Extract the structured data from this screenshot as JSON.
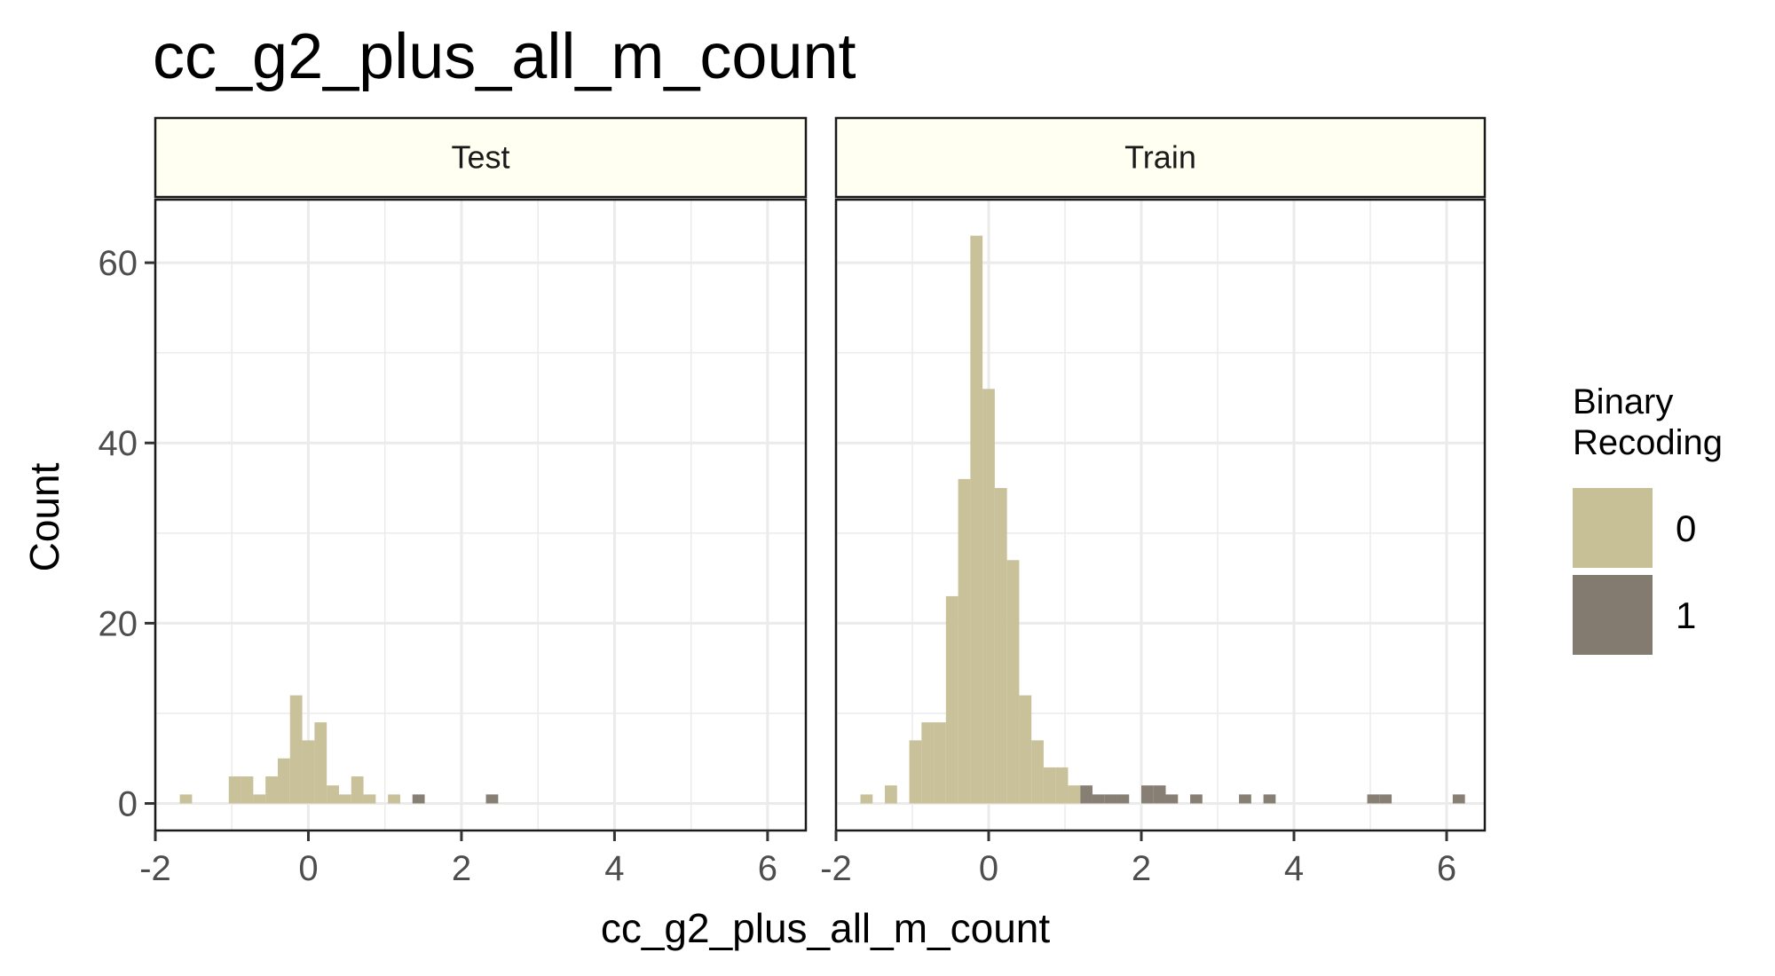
{
  "chart_data": {
    "type": "bar",
    "title": "cc_g2_plus_all_m_count",
    "xlabel": "cc_g2_plus_all_m_count",
    "ylabel": "Count",
    "xlim": [
      -2,
      6.5
    ],
    "ylim": [
      -3,
      67
    ],
    "x_ticks": [
      "-2",
      "0",
      "2",
      "4",
      "6"
    ],
    "y_ticks": [
      "0",
      "20",
      "40",
      "60"
    ],
    "bin_width": 0.16,
    "grid": true,
    "legend": {
      "title_lines": [
        "Binary",
        "Recoding"
      ],
      "placement": "right",
      "entries": [
        {
          "label": "0",
          "color": "#c7bf96"
        },
        {
          "label": "1",
          "color": "#847b70"
        }
      ]
    },
    "colors": {
      "strip_fill": "#fffff2",
      "grid": "#ebebeb",
      "border": "#1a1a1a"
    },
    "panels": [
      {
        "name": "Test",
        "bins": [
          {
            "x0": -1.68,
            "count": 1,
            "group": "0"
          },
          {
            "x0": -1.04,
            "count": 3,
            "group": "0"
          },
          {
            "x0": -0.88,
            "count": 3,
            "group": "0"
          },
          {
            "x0": -0.72,
            "count": 1,
            "group": "0"
          },
          {
            "x0": -0.56,
            "count": 3,
            "group": "0"
          },
          {
            "x0": -0.4,
            "count": 5,
            "group": "0"
          },
          {
            "x0": -0.24,
            "count": 12,
            "group": "0"
          },
          {
            "x0": -0.08,
            "count": 7,
            "group": "0"
          },
          {
            "x0": 0.08,
            "count": 9,
            "group": "0"
          },
          {
            "x0": 0.24,
            "count": 2,
            "group": "0"
          },
          {
            "x0": 0.4,
            "count": 1,
            "group": "0"
          },
          {
            "x0": 0.56,
            "count": 3,
            "group": "0"
          },
          {
            "x0": 0.72,
            "count": 1,
            "group": "0"
          },
          {
            "x0": 1.04,
            "count": 1,
            "group": "0"
          },
          {
            "x0": 1.36,
            "count": 1,
            "group": "1"
          },
          {
            "x0": 2.32,
            "count": 1,
            "group": "1"
          }
        ]
      },
      {
        "name": "Train",
        "bins": [
          {
            "x0": -1.68,
            "count": 1,
            "group": "0"
          },
          {
            "x0": -1.36,
            "count": 2,
            "group": "0"
          },
          {
            "x0": -1.04,
            "count": 7,
            "group": "0"
          },
          {
            "x0": -0.88,
            "count": 9,
            "group": "0"
          },
          {
            "x0": -0.72,
            "count": 9,
            "group": "0"
          },
          {
            "x0": -0.56,
            "count": 23,
            "group": "0"
          },
          {
            "x0": -0.4,
            "count": 36,
            "group": "0"
          },
          {
            "x0": -0.24,
            "count": 63,
            "group": "0"
          },
          {
            "x0": -0.08,
            "count": 46,
            "group": "0"
          },
          {
            "x0": 0.08,
            "count": 35,
            "group": "0"
          },
          {
            "x0": 0.24,
            "count": 27,
            "group": "0"
          },
          {
            "x0": 0.4,
            "count": 12,
            "group": "0"
          },
          {
            "x0": 0.56,
            "count": 7,
            "group": "0"
          },
          {
            "x0": 0.72,
            "count": 4,
            "group": "0"
          },
          {
            "x0": 0.88,
            "count": 4,
            "group": "0"
          },
          {
            "x0": 1.04,
            "count": 2,
            "group": "0"
          },
          {
            "x0": 1.2,
            "count": 2,
            "group": "1"
          },
          {
            "x0": 1.36,
            "count": 1,
            "group": "1"
          },
          {
            "x0": 1.52,
            "count": 1,
            "group": "1"
          },
          {
            "x0": 1.68,
            "count": 1,
            "group": "1"
          },
          {
            "x0": 2.0,
            "count": 2,
            "group": "1"
          },
          {
            "x0": 2.16,
            "count": 2,
            "group": "1"
          },
          {
            "x0": 2.32,
            "count": 1,
            "group": "1"
          },
          {
            "x0": 2.64,
            "count": 1,
            "group": "1"
          },
          {
            "x0": 3.28,
            "count": 1,
            "group": "1"
          },
          {
            "x0": 3.6,
            "count": 1,
            "group": "1"
          },
          {
            "x0": 4.96,
            "count": 1,
            "group": "1"
          },
          {
            "x0": 5.12,
            "count": 1,
            "group": "1"
          },
          {
            "x0": 6.08,
            "count": 1,
            "group": "1"
          }
        ]
      }
    ]
  }
}
